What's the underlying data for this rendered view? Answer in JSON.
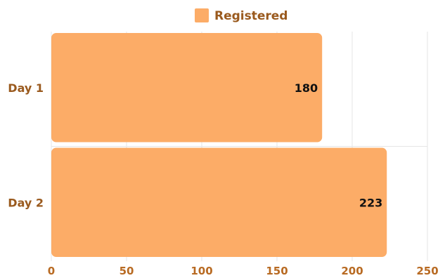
{
  "chart_data": {
    "type": "bar",
    "orientation": "horizontal",
    "categories": [
      "Day 1",
      "Day 2"
    ],
    "series": [
      {
        "name": "Registered",
        "values": [
          180,
          223
        ],
        "color": "#FCAC67"
      }
    ],
    "xlim": [
      0,
      250
    ],
    "xticks": [
      0,
      50,
      100,
      150,
      200,
      250
    ],
    "grid": true,
    "legend_position": "top-center",
    "data_labels": true
  },
  "colors": {
    "bar": "#FCAC67",
    "category_text": "#9a5a1e",
    "tick_text": "#b86a22",
    "grid": "#e6e6e6"
  }
}
